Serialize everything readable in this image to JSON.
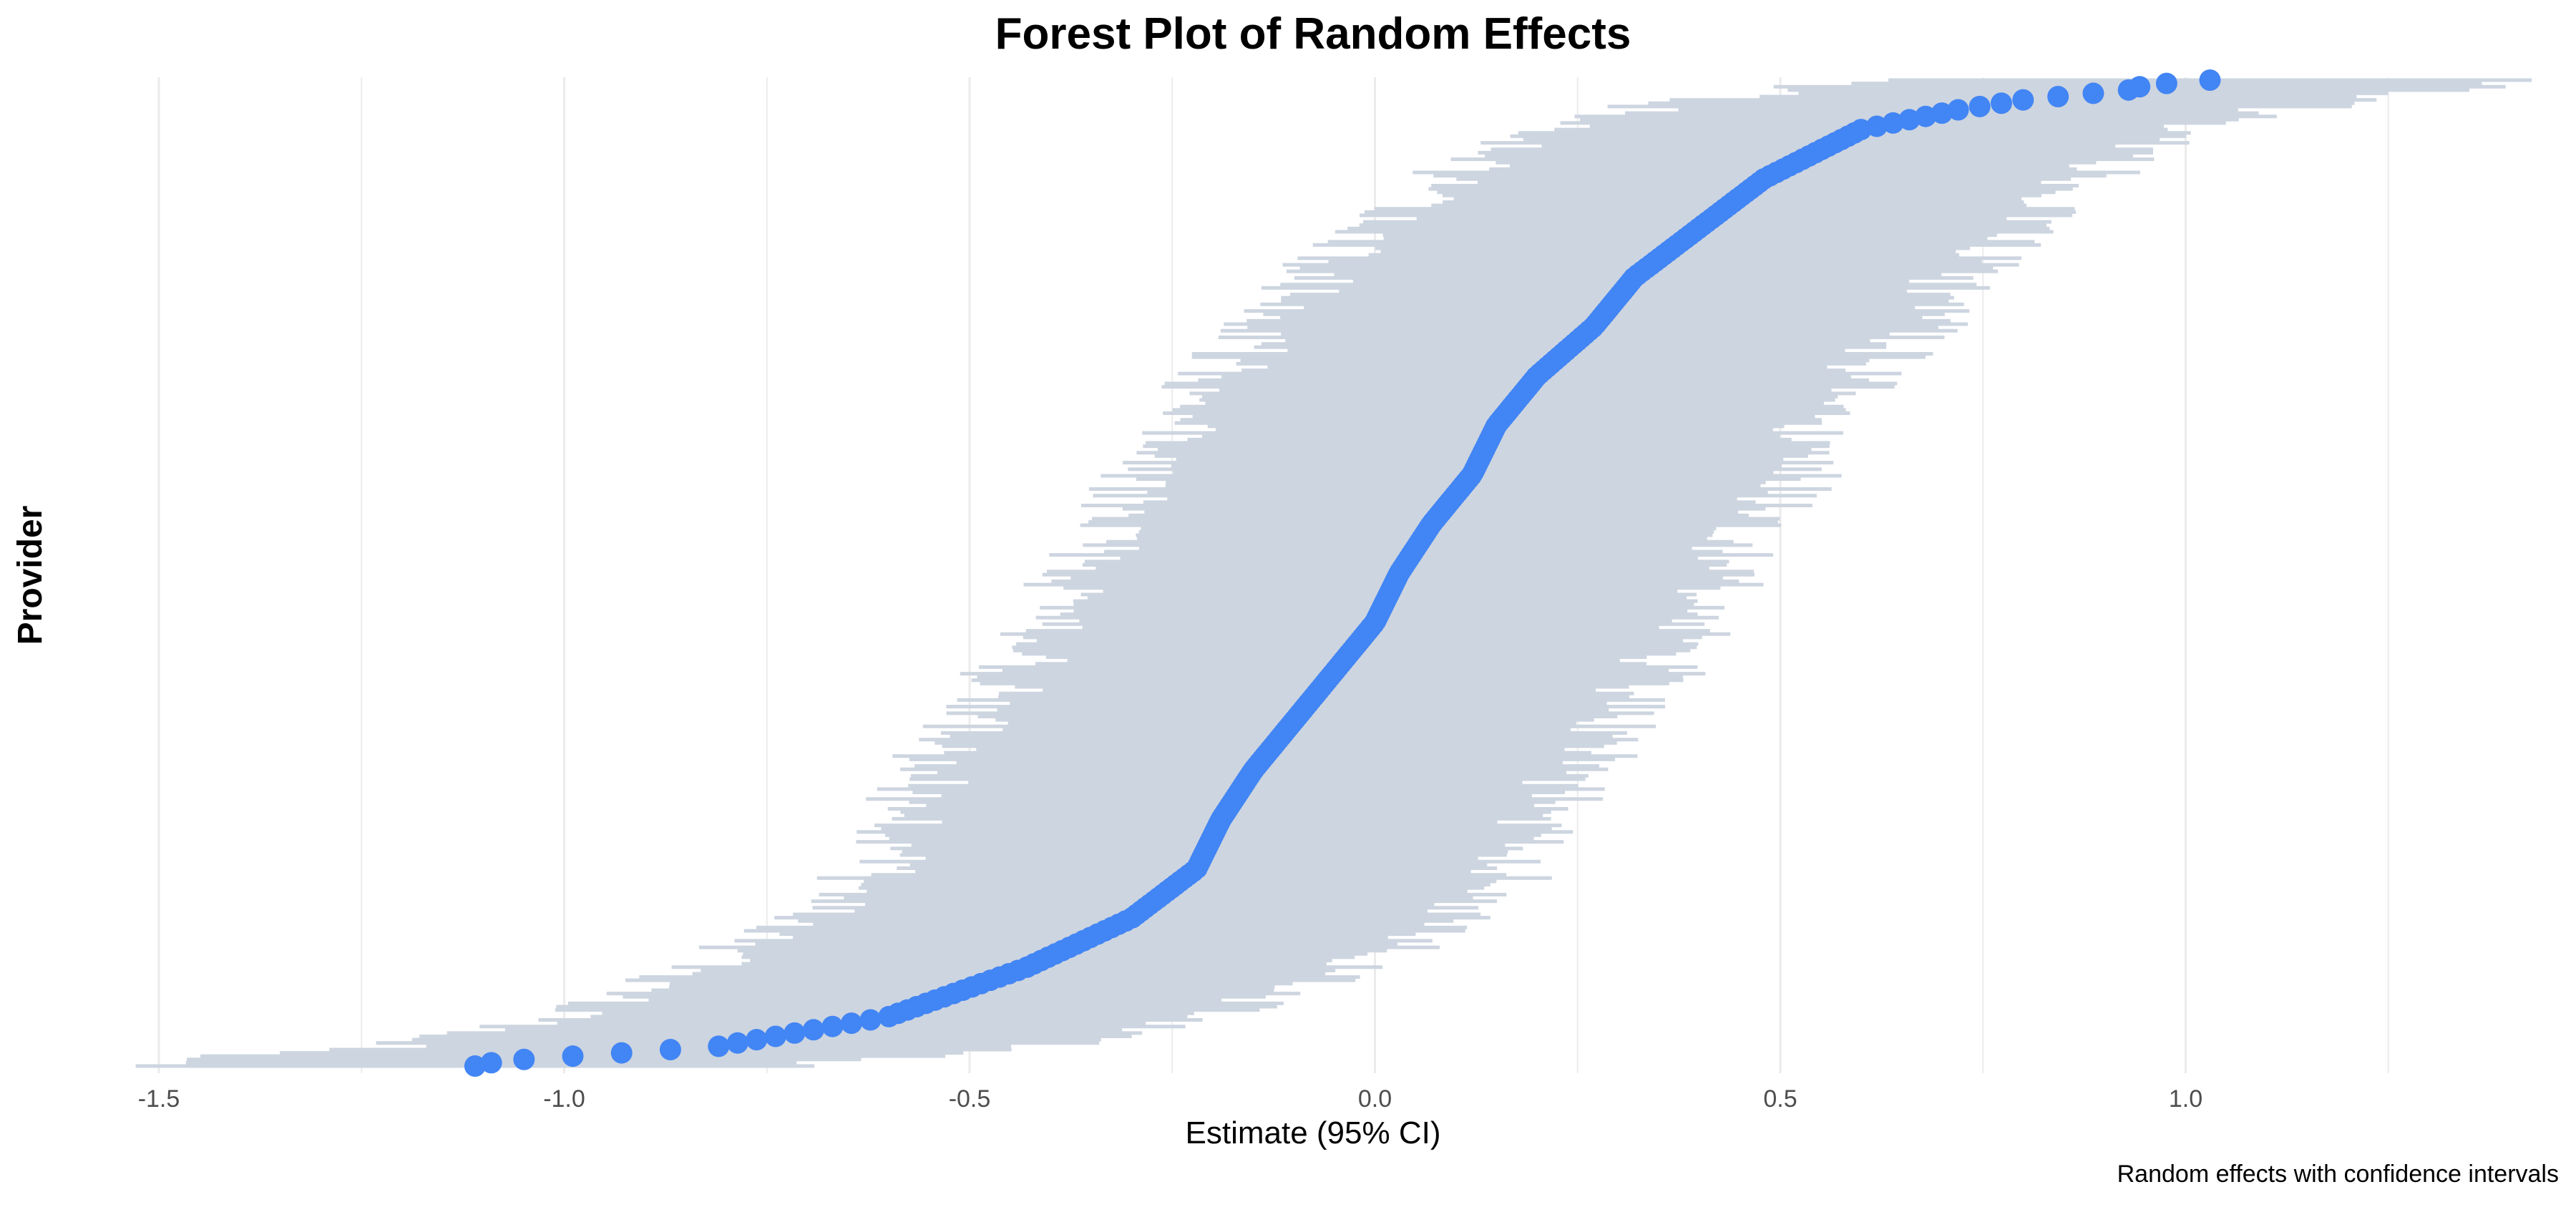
{
  "chart_data": {
    "type": "forest",
    "title": "Forest Plot of Random Effects",
    "xlabel": "Estimate (95% CI)",
    "ylabel": "Provider",
    "caption": "Random effects with confidence intervals",
    "xlim": [
      -1.55,
      1.35
    ],
    "x_ticks": [
      -1.5,
      -1.0,
      -0.5,
      0.0,
      0.5,
      1.0
    ],
    "x_tick_labels": [
      "-1.5",
      "-1.0",
      "-0.5",
      "0.0",
      "0.5",
      "1.0"
    ],
    "grid": true,
    "n_providers": 300,
    "ci_half_width": 0.4,
    "estimate_quantiles": {
      "p": [
        0.0,
        0.005,
        0.01,
        0.02,
        0.03,
        0.05,
        0.1,
        0.15,
        0.2,
        0.25,
        0.3,
        0.35,
        0.4,
        0.45,
        0.5,
        0.55,
        0.6,
        0.65,
        0.7,
        0.75,
        0.8,
        0.85,
        0.9,
        0.95,
        0.97,
        0.98,
        0.99,
        0.995,
        1.0
      ],
      "values": [
        -1.11,
        -1.08,
        -0.99,
        -0.81,
        -0.74,
        -0.6,
        -0.43,
        -0.3,
        -0.22,
        -0.19,
        -0.15,
        -0.1,
        -0.05,
        0.0,
        0.03,
        0.07,
        0.12,
        0.15,
        0.2,
        0.27,
        0.32,
        0.4,
        0.48,
        0.6,
        0.72,
        0.8,
        0.93,
        0.95,
        1.03
      ]
    },
    "colors": {
      "point": "#4285f4",
      "ci": "#cdd5e0",
      "grid": "#ebebeb"
    }
  }
}
